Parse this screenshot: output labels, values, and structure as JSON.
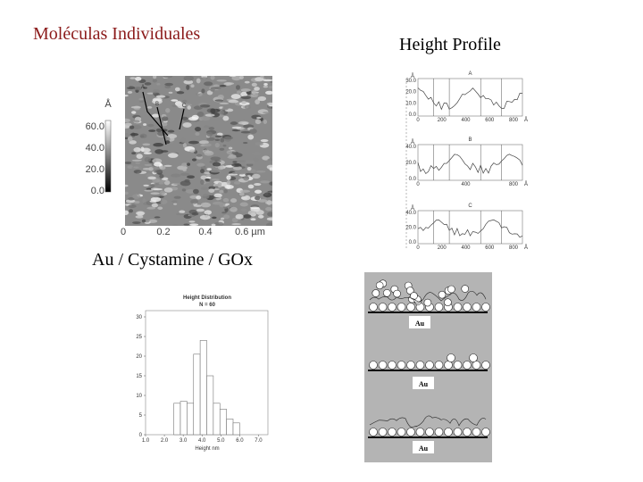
{
  "left_title": "Moléculas Individuales",
  "right_title": "Height Profile",
  "caption": "Au / Cystamine / GOx",
  "afm_image": {
    "markers": [
      "A",
      "B",
      "C"
    ],
    "unit": "Å",
    "scale_labels": [
      "60.0",
      "40.0",
      "20.0",
      "0.0"
    ],
    "x_labels": [
      "0",
      "0.2",
      "0.4",
      "0.6 µm"
    ]
  },
  "profiles": [
    {
      "title": "A",
      "y_unit": "Å",
      "y_labels": [
        "30.0",
        "20.0",
        "10.0",
        "0.0"
      ],
      "x_labels": [
        "0",
        "200",
        "400",
        "600",
        "800",
        "Å"
      ]
    },
    {
      "title": "B",
      "y_unit": "Å",
      "y_labels": [
        "40.0",
        "20.0",
        "0.0"
      ],
      "x_labels": [
        "0",
        "400",
        "800",
        "Å"
      ]
    },
    {
      "title": "C",
      "y_unit": "Å",
      "y_labels": [
        "40.0",
        "20.0",
        "0.0"
      ],
      "x_labels": [
        "0",
        "200",
        "400",
        "600",
        "800",
        "Å"
      ]
    }
  ],
  "chart_data": {
    "type": "histogram",
    "title": "Height Distribution",
    "subtitle": "N = 60",
    "x_label": "Height nm",
    "bins": [
      2.5,
      2.85,
      3.2,
      3.55,
      3.9,
      4.25,
      4.6,
      4.95,
      5.3,
      5.65,
      6.0
    ],
    "values": [
      8,
      8.5,
      8,
      20.5,
      24,
      15,
      8,
      6.5,
      4,
      3
    ],
    "color": "#ffffff",
    "xlim": [
      1.0,
      7.5
    ],
    "xticks": [
      {
        "value": 1,
        "label": "1.0"
      },
      {
        "value": 2,
        "label": "2.0"
      },
      {
        "value": 3,
        "label": "3.0"
      },
      {
        "value": 4,
        "label": "4.0"
      },
      {
        "value": 5,
        "label": "5.0"
      },
      {
        "value": 6,
        "label": "6.0"
      },
      {
        "value": 7,
        "label": "7.0"
      }
    ],
    "ylim": [
      0,
      30
    ],
    "yticks": [
      0,
      5,
      10,
      15,
      20,
      25,
      30
    ]
  },
  "schematic": {
    "substrate_labels": [
      "Au",
      "Au",
      "Au"
    ]
  }
}
